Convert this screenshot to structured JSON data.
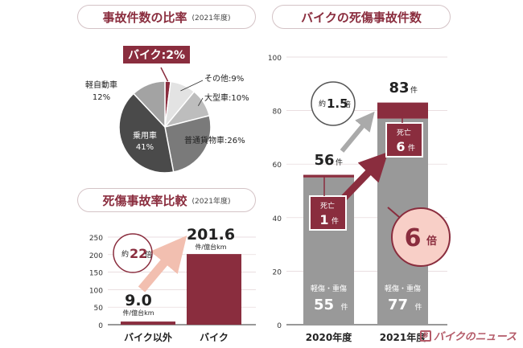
{
  "colors": {
    "accent": "#8a2d3e",
    "accent_light": "#f2bfb0",
    "bar_gray": "#999999",
    "dark_gray": "#4a4a4a"
  },
  "pie_panel": {
    "title": "事故件数の比率",
    "year_note": "(2021年度)"
  },
  "accident_panel": {
    "title": "バイクの死傷事故件数"
  },
  "fatality_panel": {
    "title": "死傷事故率比較",
    "year_note": "(2021年度)"
  },
  "logo_text": "バイクのニュース",
  "chart_data": [
    {
      "type": "pie",
      "title": "事故件数の比率",
      "slices": [
        {
          "label": "バイク",
          "value": 2,
          "display": "バイク:2%"
        },
        {
          "label": "その他",
          "value": 9,
          "display": "その他:9%"
        },
        {
          "label": "大型車",
          "value": 10,
          "display": "大型車:10%"
        },
        {
          "label": "普通貨物車",
          "value": 26,
          "display": "普通貨物車:26%"
        },
        {
          "label": "乗用車",
          "value": 41,
          "display_name": "乗用車",
          "display_value": "41%"
        },
        {
          "label": "軽自動車",
          "value": 12,
          "display_name": "軽自動車",
          "display_value": "12%"
        }
      ]
    },
    {
      "type": "bar",
      "title": "死傷事故率比較",
      "categories": [
        "バイク以外",
        "バイク"
      ],
      "values": [
        9.0,
        201.6
      ],
      "value_labels": [
        "9.0",
        "201.6"
      ],
      "unit": "件/億台km",
      "ylim": [
        0,
        250
      ],
      "yticks": [
        0,
        50,
        100,
        150,
        200,
        250
      ],
      "ratio_label": {
        "prefix": "約",
        "number": "22",
        "suffix": "倍"
      }
    },
    {
      "type": "bar",
      "title": "バイクの死傷事故件数",
      "categories": [
        "2020年度",
        "2021年度"
      ],
      "ylim": [
        0,
        100
      ],
      "yticks": [
        0,
        20,
        40,
        60,
        80,
        100
      ],
      "totals": [
        56,
        83
      ],
      "total_unit": "件",
      "series": [
        {
          "name": "軽傷・重傷",
          "values": [
            55,
            77
          ]
        },
        {
          "name": "死亡",
          "values": [
            1,
            6
          ]
        }
      ],
      "death_label": "死亡",
      "count_unit": "件",
      "total_ratio": {
        "prefix": "約",
        "number": "1.5",
        "suffix": "倍"
      },
      "death_ratio": {
        "number": "6",
        "suffix": "倍"
      }
    }
  ]
}
